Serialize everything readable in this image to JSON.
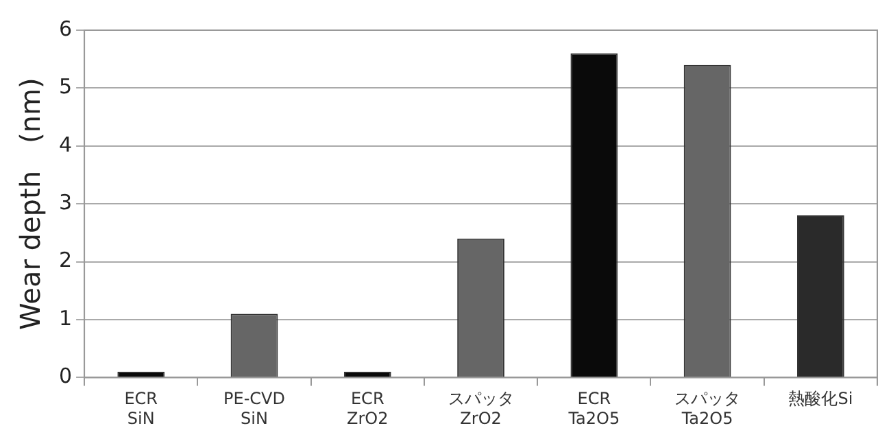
{
  "chart_data": {
    "type": "bar",
    "ylabel": "Wear depth　(nm)",
    "categories": [
      "ECR\nSiN",
      "PE-CVD\nSiN",
      "ECR\nZrO2",
      "スパッタ\nZrO2",
      "ECR\nTa2O5",
      "スパッタ\nTa2O5",
      "熱酸化Si"
    ],
    "values": [
      0.1,
      1.1,
      0.1,
      2.4,
      5.6,
      5.4,
      2.8
    ],
    "colors": [
      "#0a0a0a",
      "#666666",
      "#0a0a0a",
      "#666666",
      "#0a0a0a",
      "#666666",
      "#2a2a2a"
    ],
    "ylim": [
      0,
      6
    ],
    "yticks": [
      0,
      1,
      2,
      3,
      4,
      5,
      6
    ],
    "grid": "y"
  }
}
